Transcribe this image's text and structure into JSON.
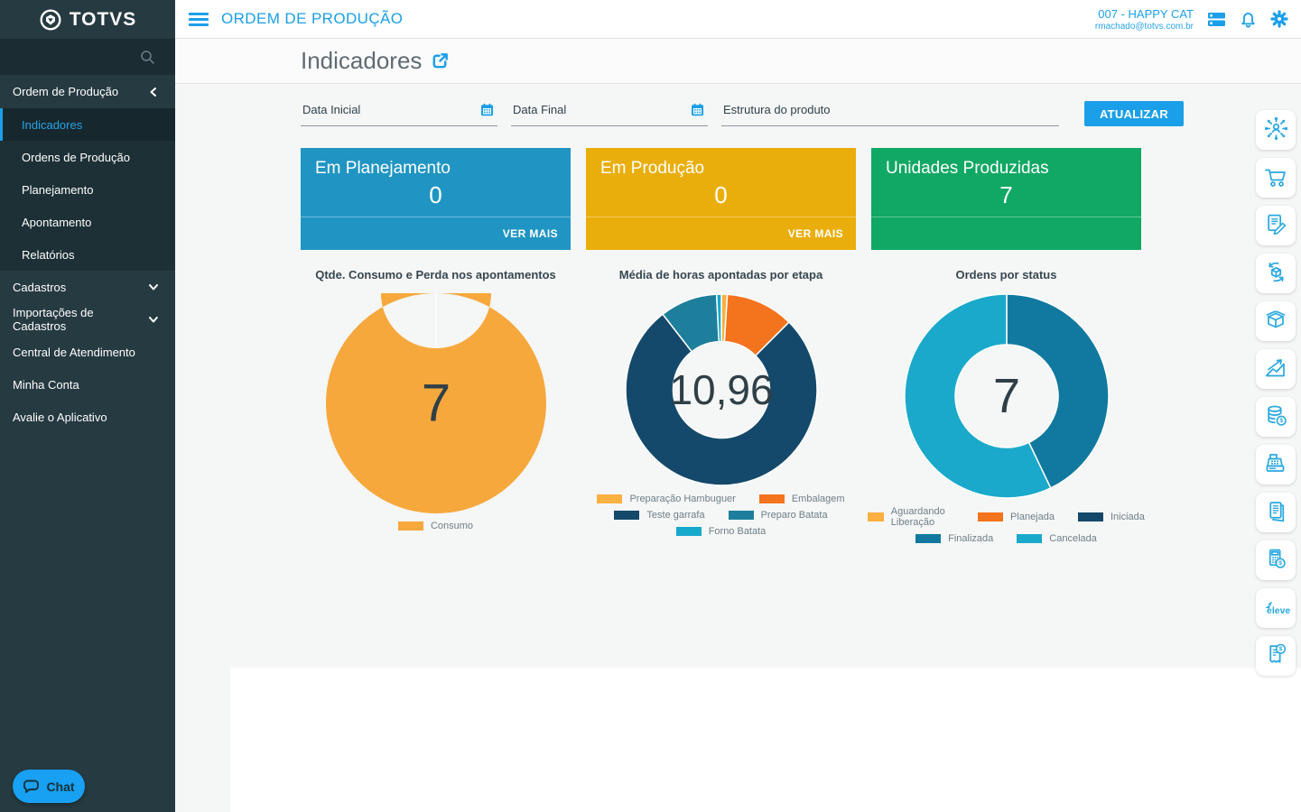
{
  "app": {
    "brand": "TOTVS",
    "appbar": {
      "title": "ORDEM DE PRODUÇÃO",
      "account_name": "007 - HAPPY CAT",
      "account_email": "rmachado@totvs.com.br"
    },
    "page_title": "Indicadores"
  },
  "sidebar": {
    "group_label": "Ordem de Produção",
    "submenu": [
      {
        "label": "Indicadores",
        "active": true
      },
      {
        "label": "Ordens de Produção",
        "active": false
      },
      {
        "label": "Planejamento",
        "active": false
      },
      {
        "label": "Apontamento",
        "active": false
      },
      {
        "label": "Relatórios",
        "active": false
      }
    ],
    "items": [
      {
        "label": "Cadastros",
        "chevron": true
      },
      {
        "label": "Importações de Cadastros",
        "chevron": true
      },
      {
        "label": "Central de Atendimento",
        "chevron": false
      },
      {
        "label": "Minha Conta",
        "chevron": false
      },
      {
        "label": "Avalie o Aplicativo",
        "chevron": false
      }
    ],
    "chat_label": "Chat"
  },
  "filters": {
    "fields": [
      {
        "label": "Data Inicial",
        "calendar_icon": true,
        "width": "sm"
      },
      {
        "label": "Data Final",
        "calendar_icon": true,
        "width": "sm"
      },
      {
        "label": "Estrutura do produto",
        "calendar_icon": false,
        "width": "lg"
      }
    ],
    "update_button": "ATUALIZAR"
  },
  "cards": [
    {
      "title": "Em Planejamento",
      "value": "0",
      "action": "VER MAIS",
      "color": "#2095c3"
    },
    {
      "title": "Em Produção",
      "value": "0",
      "action": "VER MAIS",
      "color": "#e9ae0b"
    },
    {
      "title": "Unidades Produzidas",
      "value": "7",
      "action": "",
      "color": "#10a864"
    }
  ],
  "chart_data": [
    {
      "type": "pie",
      "variant": "donut",
      "title": "Qtde. Consumo e Perda nos apontamentos",
      "center_value": "7",
      "size": 244,
      "segments": [
        {
          "label": "Consumo",
          "value_pct": 100,
          "color": "#f6a83d"
        }
      ],
      "legend_rows": [
        [
          {
            "label": "Consumo",
            "color": "#f6a83d"
          }
        ]
      ]
    },
    {
      "type": "pie",
      "variant": "donut",
      "title": "Média de horas apontadas por etapa",
      "center_value": "10,96",
      "size": 214,
      "segments": [
        {
          "label": "Preparação Hambuguer",
          "value_pct": 1.0,
          "color": "#fbb040"
        },
        {
          "label": "Embalagem",
          "value_pct": 11.5,
          "color": "#f4731d"
        },
        {
          "label": "Teste garrafa",
          "value_pct": 77.0,
          "color": "#14496b"
        },
        {
          "label": "Preparo Batata",
          "value_pct": 9.7,
          "color": "#1d7f9b"
        },
        {
          "label": "Forno Batata",
          "value_pct": 0.8,
          "color": "#16a9cb"
        }
      ],
      "legend_rows": [
        [
          {
            "label": "Preparação Hambuguer",
            "color": "#fbb040"
          },
          {
            "label": "Embalagem",
            "color": "#f4731d"
          }
        ],
        [
          {
            "label": "Teste garrafa",
            "color": "#14496b"
          },
          {
            "label": "Preparo Batata",
            "color": "#1d7f9b"
          }
        ],
        [
          {
            "label": "Forno Batata",
            "color": "#16a9cb"
          }
        ]
      ]
    },
    {
      "type": "pie",
      "variant": "donut",
      "title": "Ordens por status",
      "center_value": "7",
      "size": 228,
      "segments": [
        {
          "label": "Finalizada",
          "value_pct": 42.9,
          "color": "#1179a0"
        },
        {
          "label": "Cancelada",
          "value_pct": 57.1,
          "color": "#1aa9cb"
        }
      ],
      "legend_rows": [
        [
          {
            "label": "Aguardando Liberação",
            "color": "#fbb040"
          },
          {
            "label": "Planejada",
            "color": "#f4731d"
          },
          {
            "label": "Iniciada",
            "color": "#14496b"
          }
        ],
        [
          {
            "label": "Finalizada",
            "color": "#1179a0"
          },
          {
            "label": "Cancelada",
            "color": "#1aa9cb"
          }
        ]
      ]
    }
  ],
  "rail_icons": [
    "network-user",
    "shopping-cart",
    "document-pen",
    "cube-sync",
    "package-box",
    "chart-growth",
    "coins-dollar",
    "cash-register",
    "notebook",
    "calculator-dollar",
    "eleve-logo",
    "receipt-dollar"
  ],
  "colors": {
    "accent": "#1b9fe8",
    "sidebar_bg": "#263a41",
    "submenu_bg": "#1d3036",
    "card_blue": "#2095c3",
    "card_amber": "#e9ae0b",
    "card_green": "#10a864",
    "chat_blue": "#18a0f2",
    "donut_text": "#2f3f47"
  }
}
